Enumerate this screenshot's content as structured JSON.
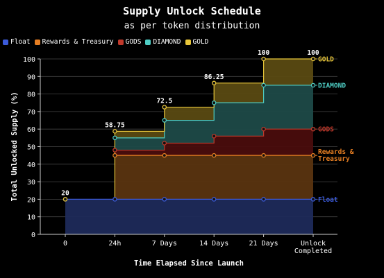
{
  "chart_data": {
    "type": "area",
    "title": "Supply Unlock Schedule",
    "subtitle": "as per token distribution",
    "xlabel": "Time Elapsed Since Launch",
    "ylabel": "Total Unlocked Supply (%)",
    "categories": [
      "0",
      "24h",
      "7 Days",
      "14 Days",
      "21 Days",
      "Unlock\nCompleted"
    ],
    "ylim": [
      0,
      100
    ],
    "yticks": [
      0,
      10,
      20,
      30,
      40,
      50,
      60,
      70,
      80,
      90,
      100
    ],
    "grid": true,
    "legend_placement": "top-left",
    "series": [
      {
        "name": "Float",
        "color": "#3b5bdb",
        "values": [
          20,
          20,
          20,
          20,
          20,
          20
        ]
      },
      {
        "name": "Rewards & Treasury",
        "color": "#e67e22",
        "values": [
          null,
          45,
          45,
          45,
          45,
          45
        ]
      },
      {
        "name": "GODS",
        "color": "#c0392b",
        "values": [
          null,
          48,
          52,
          56,
          60,
          60
        ]
      },
      {
        "name": "DIAMOND",
        "color": "#4ecdc4",
        "values": [
          null,
          55,
          65,
          75,
          85,
          85
        ]
      },
      {
        "name": "GOLD",
        "color": "#e8c63a",
        "values": [
          null,
          58.75,
          72.5,
          86.25,
          100,
          100
        ]
      }
    ],
    "totals_labels": [
      "20",
      "58.75",
      "72.5",
      "86.25",
      "100",
      "100"
    ],
    "right_labels": [
      "Float",
      "Rewards &\nTreasury",
      "GODS",
      "DIAMOND",
      "GOLD"
    ]
  }
}
